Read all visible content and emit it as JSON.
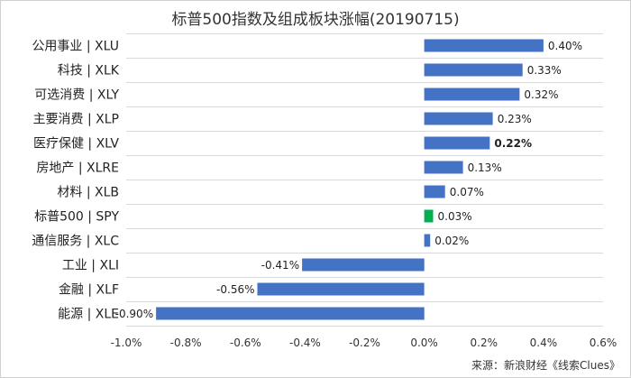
{
  "chart_data": {
    "type": "bar",
    "orientation": "horizontal",
    "title": "标普500指数及组成板块涨幅(20190715)",
    "categories": [
      "公用事业 | XLU",
      "科技 | XLK",
      "可选消费 | XLY",
      "主要消费 | XLP",
      "医疗保健 | XLV",
      "房地产 | XLRE",
      "材料 | XLB",
      "标普500 | SPY",
      "通信服务 | XLC",
      "工业 | XLI",
      "金融 | XLF",
      "能源 | XLE"
    ],
    "values": [
      0.4,
      0.33,
      0.32,
      0.23,
      0.22,
      0.13,
      0.07,
      0.03,
      0.02,
      -0.41,
      -0.56,
      -0.9
    ],
    "data_labels": [
      "0.40%",
      "0.33%",
      "0.32%",
      "0.23%",
      "0.22%",
      "0.13%",
      "0.07%",
      "0.03%",
      "0.02%",
      "-0.41%",
      "-0.56%",
      "-0.90%"
    ],
    "bar_colors": [
      "#4472C4",
      "#4472C4",
      "#4472C4",
      "#4472C4",
      "#4472C4",
      "#4472C4",
      "#4472C4",
      "#00B050",
      "#4472C4",
      "#4472C4",
      "#4472C4",
      "#4472C4"
    ],
    "bold_label_index": 4,
    "xlim": [
      -1.0,
      0.6
    ],
    "x_ticks": [
      -1.0,
      -0.8,
      -0.6,
      -0.4,
      -0.2,
      0.0,
      0.2,
      0.4,
      0.6
    ],
    "x_tick_labels": [
      "-1.0%",
      "-0.8%",
      "-0.6%",
      "-0.4%",
      "-0.2%",
      "0.0%",
      "0.2%",
      "0.4%",
      "0.6%"
    ],
    "grid": "horizontal",
    "legend": "none",
    "source": "来源：新浪财经《线索Clues》"
  }
}
